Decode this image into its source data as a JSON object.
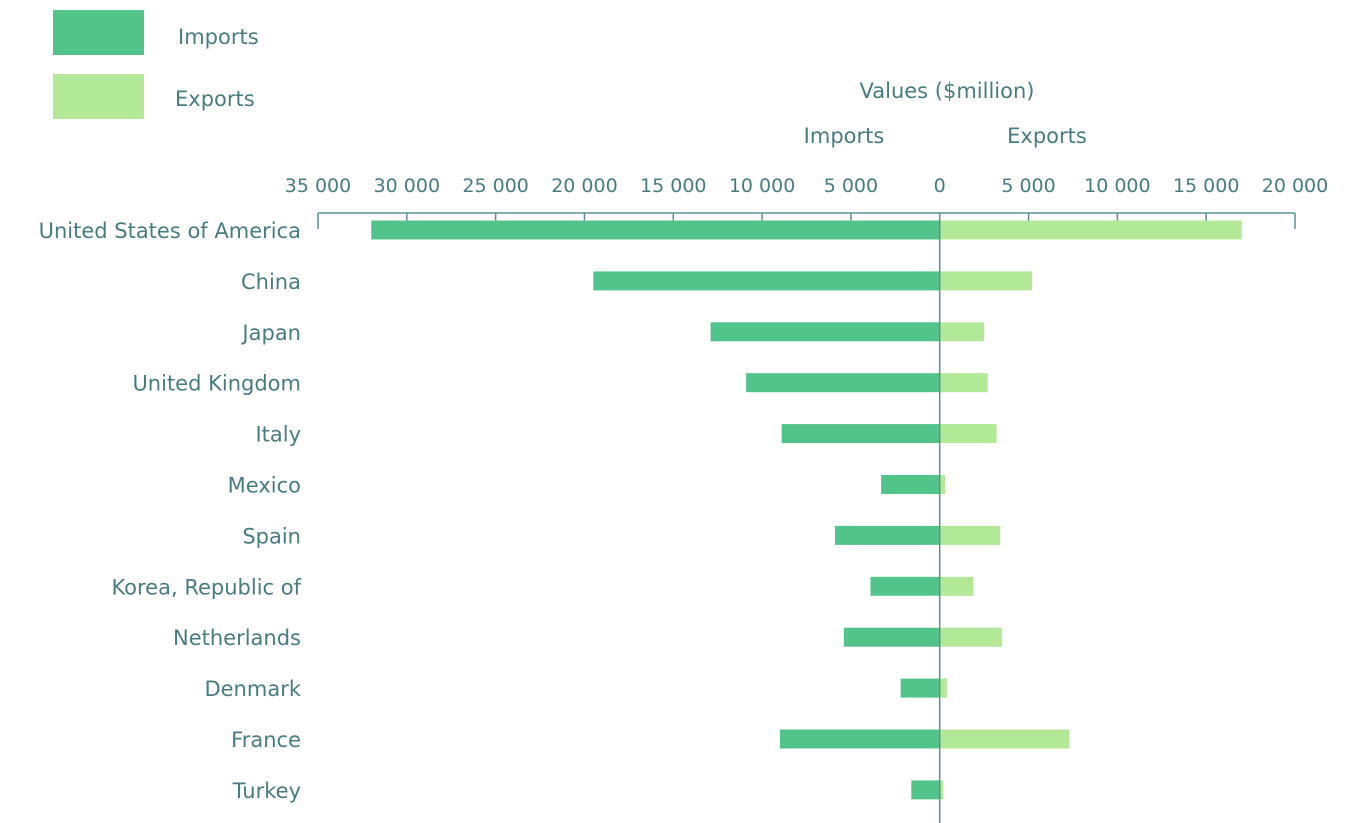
{
  "colors": {
    "imports": "#52c38b",
    "exports": "#b3e897",
    "axis": "#5f8f93",
    "text": "#4a7b7f"
  },
  "legend": {
    "imports_label": "Imports",
    "exports_label": "Exports"
  },
  "chart_data": {
    "type": "bar",
    "orientation": "horizontal-diverging",
    "axis_title": "Values ($million)",
    "left_side_label": "Imports",
    "right_side_label": "Exports",
    "xlim": [
      -35000,
      20000
    ],
    "x_ticks": [
      -35000,
      -30000,
      -25000,
      -20000,
      -15000,
      -10000,
      -5000,
      0,
      5000,
      10000,
      15000,
      20000
    ],
    "x_tick_labels": [
      "35 000",
      "30 000",
      "25 000",
      "20 000",
      "15 000",
      "10 000",
      "5 000",
      "0",
      "5 000",
      "10 000",
      "15 000",
      "20 000"
    ],
    "categories": [
      "United States of America",
      "China",
      "Japan",
      "United Kingdom",
      "Italy",
      "Mexico",
      "Spain",
      "Korea, Republic of",
      "Netherlands",
      "Denmark",
      "France",
      "Turkey"
    ],
    "series": [
      {
        "name": "Imports",
        "values": [
          32000,
          19500,
          12900,
          10900,
          8900,
          3300,
          5900,
          3900,
          5400,
          2200,
          9000,
          1600
        ]
      },
      {
        "name": "Exports",
        "values": [
          17000,
          5200,
          2500,
          2700,
          3200,
          300,
          3400,
          1900,
          3500,
          400,
          7300,
          200
        ]
      }
    ],
    "legend_position": "top-left",
    "grid": false
  }
}
